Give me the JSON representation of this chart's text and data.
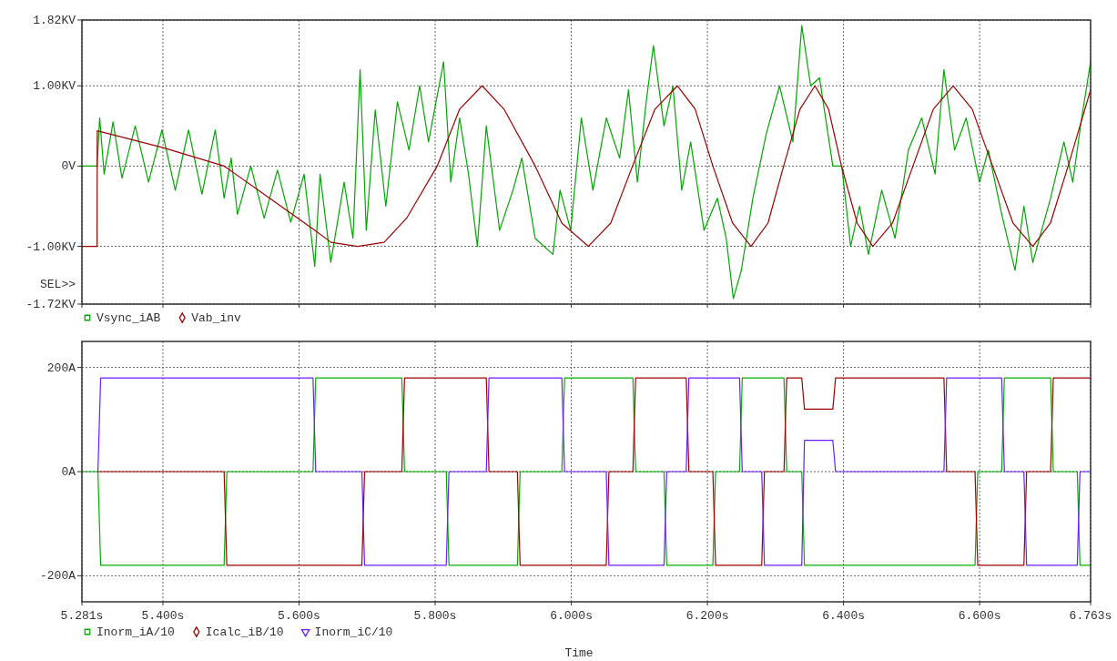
{
  "chart_data": [
    {
      "type": "line",
      "xlim": [
        5.281,
        6.763
      ],
      "xticks": [
        {
          "value": 5.281,
          "label": null
        },
        {
          "value": 5.4,
          "label": null
        },
        {
          "value": 5.6,
          "label": null
        },
        {
          "value": 5.8,
          "label": null
        },
        {
          "value": 6.0,
          "label": null
        },
        {
          "value": 6.2,
          "label": null
        },
        {
          "value": 6.4,
          "label": null
        },
        {
          "value": 6.6,
          "label": null
        },
        {
          "value": 6.763,
          "label": null
        }
      ],
      "ylim": [
        -1.72,
        1.82
      ],
      "yticks": [
        {
          "value": -1.72,
          "label": "-1.72KV"
        },
        {
          "value": -1.0,
          "label": "-1.00KV"
        },
        {
          "value": 0,
          "label": "0V"
        },
        {
          "value": 1.0,
          "label": "1.00KV"
        },
        {
          "value": 1.82,
          "label": "1.82KV"
        }
      ],
      "tick_labels": "y",
      "grid": true,
      "legend": "bottom",
      "annotations": [
        "SEL>>"
      ],
      "series": [
        {
          "name": "Vsync_iAB",
          "color": "#00a800",
          "x": [
            5.281,
            5.2941,
            5.3032,
            5.3071,
            5.3136,
            5.3267,
            5.3398,
            5.3593,
            5.3789,
            5.3985,
            5.4181,
            5.4377,
            5.4573,
            5.4769,
            5.4899,
            5.5003,
            5.5095,
            5.5291,
            5.5487,
            5.5683,
            5.5878,
            5.6074,
            5.6231,
            5.6309,
            5.6466,
            5.6662,
            5.6792,
            5.6897,
            5.6988,
            5.7119,
            5.7275,
            5.7445,
            5.7615,
            5.7772,
            5.7902,
            5.8124,
            5.8229,
            5.8359,
            5.849,
            5.862,
            5.8751,
            5.8947,
            5.9143,
            5.9273,
            5.9469,
            5.973,
            5.9835,
            5.9991,
            6.0148,
            6.0318,
            6.0514,
            6.071,
            6.084,
            6.0971,
            6.1101,
            6.1206,
            6.1362,
            6.1493,
            6.1623,
            6.1754,
            6.195,
            6.2146,
            6.2276,
            6.2381,
            6.2498,
            6.2668,
            6.2864,
            6.306,
            6.3256,
            6.3386,
            6.3517,
            6.3647,
            6.3843,
            6.3974,
            6.4104,
            6.4235,
            6.4366,
            6.4561,
            6.4757,
            6.4953,
            6.5149,
            6.5345,
            6.5475,
            6.5632,
            6.5802,
            6.5998,
            6.6128,
            6.6324,
            6.652,
            6.665,
            6.6781,
            6.6911,
            6.7042,
            6.7238,
            6.7368,
            6.7499,
            6.763
          ],
          "values": [
            0,
            0,
            0,
            0.6,
            -0.1,
            0.55,
            -0.15,
            0.5,
            -0.2,
            0.45,
            -0.3,
            0.45,
            -0.35,
            0.45,
            -0.4,
            0.1,
            -0.6,
            0,
            -0.65,
            -0.05,
            -0.7,
            -0.1,
            -1.25,
            -0.1,
            -1.2,
            -0.2,
            -0.9,
            1.2,
            -0.8,
            0.7,
            -0.5,
            0.8,
            0.2,
            1.0,
            0.3,
            1.3,
            -0.2,
            0.6,
            -0.1,
            -1.0,
            0.5,
            -0.8,
            -0.3,
            0.1,
            -0.9,
            -1.1,
            -0.3,
            -0.8,
            0.6,
            -0.3,
            0.6,
            0.1,
            0.95,
            -0.2,
            0.8,
            1.5,
            0.5,
            1.0,
            -0.3,
            0.3,
            -0.8,
            -0.4,
            -0.9,
            -1.65,
            -1.3,
            -0.4,
            0.4,
            1.0,
            0.3,
            1.75,
            1.0,
            1.1,
            0,
            0,
            -1.0,
            -0.5,
            -1.1,
            -0.3,
            -0.9,
            0.2,
            0.6,
            -0.1,
            1.2,
            0.2,
            0.6,
            -0.2,
            0.2,
            -0.6,
            -1.3,
            -0.5,
            -1.2,
            -0.8,
            -0.4,
            0.3,
            -0.2,
            0.6,
            1.3
          ]
        },
        {
          "name": "Vab_inv",
          "color": "#a00000",
          "x": [
            5.281,
            5.3032,
            5.3035,
            5.4,
            5.49,
            5.555,
            5.62,
            5.647,
            5.686,
            5.725,
            5.758,
            5.803,
            5.836,
            5.869,
            5.901,
            5.947,
            5.986,
            6.025,
            6.058,
            6.09,
            6.123,
            6.156,
            6.182,
            6.208,
            6.237,
            6.264,
            6.289,
            6.312,
            6.336,
            6.358,
            6.378,
            6.397,
            6.42,
            6.443,
            6.472,
            6.502,
            6.532,
            6.561,
            6.589,
            6.619,
            6.649,
            6.678,
            6.704,
            6.73,
            6.763
          ],
          "values": [
            -1.0,
            -1.0,
            0.44,
            0.23,
            0,
            -0.39,
            -0.78,
            -0.95,
            -1.0,
            -0.95,
            -0.65,
            0,
            0.71,
            1.0,
            0.71,
            0,
            -0.71,
            -1.0,
            -0.71,
            0,
            0.71,
            1.0,
            0.71,
            0,
            -0.71,
            -1.0,
            -0.71,
            0,
            0.71,
            1.0,
            0.71,
            0,
            -0.71,
            -1.0,
            -0.71,
            0,
            0.71,
            1.0,
            0.71,
            0,
            -0.71,
            -1.0,
            -0.71,
            0,
            0.95
          ]
        }
      ]
    },
    {
      "type": "line",
      "xlabel": "Time",
      "xlim": [
        5.281,
        6.763
      ],
      "xticks": [
        {
          "value": 5.281,
          "label": "5.281s"
        },
        {
          "value": 5.4,
          "label": "5.400s"
        },
        {
          "value": 5.6,
          "label": "5.600s"
        },
        {
          "value": 5.8,
          "label": "5.800s"
        },
        {
          "value": 6.0,
          "label": "6.000s"
        },
        {
          "value": 6.2,
          "label": "6.200s"
        },
        {
          "value": 6.4,
          "label": "6.400s"
        },
        {
          "value": 6.6,
          "label": "6.600s"
        },
        {
          "value": 6.763,
          "label": "6.763s"
        }
      ],
      "ylim": [
        -250,
        250
      ],
      "yticks": [
        {
          "value": -200,
          "label": "-200A"
        },
        {
          "value": 0,
          "label": "0A"
        },
        {
          "value": 200,
          "label": "200A"
        }
      ],
      "grid": true,
      "legend": "bottom",
      "x": [
        5.281,
        5.3045,
        5.3085,
        5.4899,
        5.4939,
        5.6205,
        5.6245,
        5.6923,
        5.6963,
        5.751,
        5.755,
        5.8163,
        5.8203,
        5.8751,
        5.8791,
        5.9208,
        5.9248,
        5.9861,
        5.9901,
        6.0513,
        6.0553,
        6.0905,
        6.0945,
        6.1362,
        6.1402,
        6.1688,
        6.1728,
        6.208,
        6.212,
        6.2472,
        6.2512,
        6.2798,
        6.2838,
        6.3125,
        6.3165,
        6.3386,
        6.3426,
        6.3843,
        6.3883,
        6.5475,
        6.5515,
        6.5932,
        6.5972,
        6.6323,
        6.6363,
        6.665,
        6.669,
        6.7042,
        6.7082,
        6.7434,
        6.7474,
        6.763
      ],
      "series": [
        {
          "name": "Inorm_iA/10",
          "color": "#00b000",
          "values": [
            0,
            0,
            -180,
            -180,
            0,
            0,
            180,
            180,
            180,
            180,
            0,
            0,
            -180,
            -180,
            -180,
            -180,
            0,
            0,
            180,
            180,
            180,
            180,
            0,
            0,
            -180,
            -180,
            -180,
            -180,
            0,
            0,
            180,
            180,
            180,
            180,
            0,
            0,
            -180,
            -180,
            -180,
            -180,
            -180,
            -180,
            0,
            0,
            180,
            180,
            180,
            180,
            0,
            0,
            -180,
            -180
          ]
        },
        {
          "name": "Icalc_iB/10",
          "color": "#a00000",
          "values": [
            null,
            0,
            0,
            0,
            -180,
            -180,
            -180,
            -180,
            0,
            0,
            180,
            180,
            180,
            180,
            0,
            0,
            -180,
            -180,
            -180,
            -180,
            0,
            0,
            180,
            180,
            180,
            180,
            0,
            0,
            -180,
            -180,
            -180,
            -180,
            0,
            0,
            180,
            180,
            120,
            120,
            180,
            180,
            0,
            0,
            -180,
            -180,
            -180,
            -180,
            0,
            0,
            180,
            180,
            180,
            180
          ]
        },
        {
          "name": "Inorm_iC/10",
          "color": "#6a1eff",
          "values": [
            null,
            0,
            180,
            180,
            180,
            180,
            0,
            0,
            -180,
            -180,
            -180,
            -180,
            0,
            0,
            180,
            180,
            180,
            180,
            0,
            0,
            -180,
            -180,
            -180,
            -180,
            0,
            0,
            180,
            180,
            180,
            180,
            0,
            0,
            -180,
            -180,
            -180,
            -180,
            60,
            60,
            0,
            0,
            180,
            180,
            180,
            180,
            0,
            0,
            -180,
            -180,
            -180,
            -180,
            0,
            0
          ]
        }
      ]
    }
  ]
}
